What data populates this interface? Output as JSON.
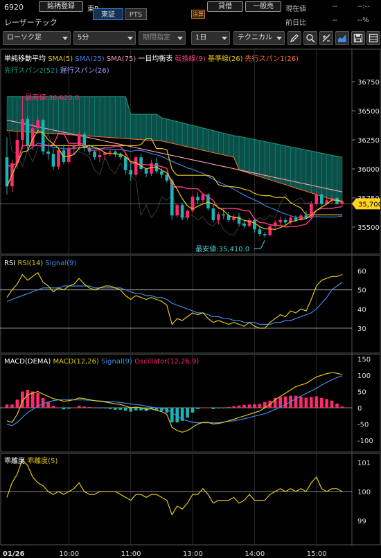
{
  "header": {
    "code": "6920",
    "company": "レーザーテック",
    "search_button": "銘柄登録",
    "market": "東P",
    "exchange_tabs": [
      "東証",
      "PTS"
    ],
    "earnings_badge": "決算",
    "sell_button": "貸借",
    "buy_button": "一般売",
    "current_label": "現在値",
    "current_value": "--",
    "current_value2": "--:--",
    "change_label": "前日比",
    "change_value": "--",
    "change_pct": "--%"
  },
  "toolbar": {
    "chart_type": "ローソク足",
    "interval": "5分",
    "period": "期間指定",
    "range": "1日",
    "technical": "テクニカル"
  },
  "colors": {
    "bg": "#000000",
    "up": "#ff2a6d",
    "down": "#1ab5b5",
    "sma5": "#e6c619",
    "sma25": "#3c7ee8",
    "sma75": "#f39bb2",
    "tenkan": "#ff3b8b",
    "kijun": "#e6c619",
    "span1": "#ff6d2a",
    "span2": "#1a9a86",
    "cloud": "#0e6b60",
    "rsi": "#e6c619",
    "signal": "#3c8ee8",
    "price_tag": "#ffd21f"
  },
  "icons": [
    "pencil-icon",
    "zoom-icon",
    "eraser-icon",
    "area-chart-icon",
    "save-icon",
    "layout-icon"
  ],
  "main": {
    "legend": [
      {
        "label": "単純移動平均",
        "color": "#ffffff"
      },
      {
        "label": "SMA(5)",
        "color": "#e6c619"
      },
      {
        "label": "SMA(25)",
        "color": "#3c7ee8"
      },
      {
        "label": "SMA(75)",
        "color": "#f39bb2"
      },
      {
        "label": "一目均衡表",
        "color": "#ffffff"
      },
      {
        "label": "転換線(9)",
        "color": "#ff3b8b"
      },
      {
        "label": "基準線(26)",
        "color": "#e6c619"
      },
      {
        "label": "先行スパン1(26)",
        "color": "#ff6d2a"
      }
    ],
    "legend2": [
      {
        "label": "先行スパン2(52)",
        "color": "#1a9a86"
      },
      {
        "label": "遅行スパン(26)",
        "color": "#9aa4ff"
      }
    ],
    "high_label": "最高値:36,620.0",
    "low_label": "最安値:35,410.0",
    "price_tag": "35,700",
    "y_ticks": [
      "36750",
      "36500",
      "36250",
      "36000",
      "35750",
      "35500"
    ],
    "y_values": [
      36750,
      36500,
      36250,
      36000,
      35750,
      35500
    ]
  },
  "rsi": {
    "title": "RSI",
    "legend": [
      {
        "label": "RSI(14)",
        "color": "#e6c619"
      },
      {
        "label": "Signal(9)",
        "color": "#3c8ee8"
      }
    ],
    "y_ticks": [
      "60",
      "50",
      "40",
      "30"
    ],
    "y_values": [
      60,
      50,
      40,
      30
    ]
  },
  "macd": {
    "title": "MACD(DEMA)",
    "legend": [
      {
        "label": "MACD(12,26)",
        "color": "#e6c619"
      },
      {
        "label": "Signal(9)",
        "color": "#3c8ee8"
      },
      {
        "label": "Oscillator(12,26,9)",
        "color": "#ff2a6d"
      }
    ],
    "y_ticks": [
      "150",
      "100",
      "50",
      "0",
      "-50",
      "-100"
    ],
    "y_values": [
      150,
      100,
      50,
      0,
      -50,
      -100
    ]
  },
  "dev": {
    "title": "乖離度",
    "legend": [
      {
        "label": "乖離度(5)",
        "color": "#e6c619"
      }
    ],
    "y_ticks": [
      "101",
      "100",
      "99"
    ],
    "y_values": [
      101,
      100,
      99
    ]
  },
  "x_axis": {
    "labels": [
      "01/26",
      "10:00",
      "11:00",
      "13:00",
      "14:00",
      "15:00"
    ],
    "positions": [
      0,
      12,
      24,
      36,
      48,
      60
    ]
  },
  "chart_data": {
    "type": "candlestick",
    "interval": "5min",
    "x_labels": [
      "01/26",
      "10:00",
      "11:00",
      "13:00",
      "14:00",
      "15:00"
    ],
    "ohlc": [
      [
        36100,
        36270,
        35780,
        35850
      ],
      [
        35850,
        36080,
        35800,
        36050
      ],
      [
        36050,
        36320,
        36000,
        36250
      ],
      [
        36250,
        36620,
        36170,
        36430
      ],
      [
        36430,
        36450,
        36170,
        36200
      ],
      [
        36200,
        36400,
        36160,
        36350
      ],
      [
        36350,
        36450,
        36300,
        36420
      ],
      [
        36420,
        36430,
        36120,
        36150
      ],
      [
        36150,
        36230,
        36080,
        36130
      ],
      [
        36130,
        36170,
        35990,
        36020
      ],
      [
        36020,
        36180,
        36000,
        36160
      ],
      [
        36160,
        36210,
        36040,
        36060
      ],
      [
        36060,
        36200,
        36040,
        36180
      ],
      [
        36180,
        36220,
        36130,
        36200
      ],
      [
        36200,
        36330,
        36160,
        36300
      ],
      [
        36300,
        36320,
        36150,
        36180
      ],
      [
        36180,
        36210,
        36120,
        36150
      ],
      [
        36150,
        36160,
        36080,
        36100
      ],
      [
        36100,
        36180,
        36060,
        36120
      ],
      [
        36120,
        36150,
        36080,
        36140
      ],
      [
        36140,
        36170,
        36110,
        36150
      ],
      [
        36150,
        36160,
        36100,
        36130
      ],
      [
        36130,
        36140,
        36080,
        36100
      ],
      [
        36100,
        36130,
        35950,
        35990
      ],
      [
        35990,
        36050,
        35900,
        35950
      ],
      [
        35950,
        36110,
        35930,
        36100
      ],
      [
        36100,
        36130,
        35980,
        36000
      ],
      [
        36000,
        36010,
        35930,
        35960
      ],
      [
        35960,
        36080,
        35940,
        36050
      ],
      [
        36050,
        36100,
        35960,
        35980
      ],
      [
        35980,
        36010,
        35920,
        35950
      ],
      [
        35950,
        35960,
        35880,
        35900
      ],
      [
        35900,
        35920,
        35560,
        35600
      ],
      [
        35600,
        35700,
        35580,
        35690
      ],
      [
        35690,
        35710,
        35560,
        35580
      ],
      [
        35580,
        35650,
        35560,
        35640
      ],
      [
        35640,
        35780,
        35620,
        35760
      ],
      [
        35760,
        35800,
        35700,
        35730
      ],
      [
        35730,
        35790,
        35700,
        35780
      ],
      [
        35780,
        35790,
        35640,
        35660
      ],
      [
        35660,
        35690,
        35540,
        35560
      ],
      [
        35560,
        35630,
        35520,
        35610
      ],
      [
        35610,
        35660,
        35570,
        35600
      ],
      [
        35600,
        35630,
        35540,
        35560
      ],
      [
        35560,
        35610,
        35540,
        35590
      ],
      [
        35590,
        35620,
        35510,
        35530
      ],
      [
        35530,
        35560,
        35490,
        35510
      ],
      [
        35510,
        35580,
        35500,
        35560
      ],
      [
        35560,
        35570,
        35450,
        35480
      ],
      [
        35480,
        35510,
        35420,
        35440
      ],
      [
        35440,
        35460,
        35410,
        35430
      ],
      [
        35430,
        35520,
        35420,
        35510
      ],
      [
        35510,
        35560,
        35490,
        35540
      ],
      [
        35540,
        35590,
        35520,
        35560
      ],
      [
        35560,
        35580,
        35520,
        35540
      ],
      [
        35540,
        35600,
        35520,
        35580
      ],
      [
        35580,
        35600,
        35540,
        35560
      ],
      [
        35560,
        35620,
        35550,
        35600
      ],
      [
        35600,
        35640,
        35570,
        35580
      ],
      [
        35580,
        35720,
        35570,
        35700
      ],
      [
        35700,
        35800,
        35680,
        35780
      ],
      [
        35780,
        35790,
        35680,
        35700
      ],
      [
        35700,
        35750,
        35690,
        35730
      ],
      [
        35730,
        35760,
        35700,
        35750
      ],
      [
        35750,
        35760,
        35690,
        35700
      ],
      [
        35700,
        35740,
        35680,
        35720
      ]
    ],
    "rsi": [
      46,
      50,
      53,
      58,
      55,
      57,
      59,
      54,
      52,
      49,
      51,
      50,
      52,
      53,
      56,
      53,
      51,
      50,
      51,
      52,
      52,
      51,
      50,
      47,
      45,
      47,
      46,
      45,
      46,
      45,
      44,
      42,
      32,
      35,
      34,
      36,
      38,
      37,
      38,
      35,
      33,
      34,
      33,
      32,
      33,
      32,
      31,
      33,
      31,
      30,
      30,
      33,
      35,
      37,
      36,
      39,
      38,
      40,
      39,
      45,
      52,
      55,
      56,
      57,
      57,
      58
    ],
    "rsi_signal": [
      44,
      45,
      46,
      47,
      48,
      49,
      50,
      51,
      51,
      51,
      51,
      52,
      52,
      52,
      52,
      52,
      52,
      51,
      51,
      51,
      51,
      51,
      51,
      50,
      49,
      48,
      48,
      47,
      47,
      46,
      46,
      45,
      43,
      42,
      41,
      40,
      39,
      38,
      38,
      37,
      36,
      36,
      35,
      35,
      34,
      34,
      33,
      33,
      33,
      32,
      32,
      32,
      33,
      33,
      34,
      34,
      35,
      36,
      37,
      38,
      40,
      43,
      46,
      50,
      52,
      54
    ],
    "macd": [
      -40,
      -45,
      -20,
      20,
      40,
      45,
      50,
      42,
      35,
      28,
      25,
      20,
      22,
      25,
      30,
      28,
      25,
      22,
      20,
      18,
      15,
      12,
      10,
      5,
      0,
      2,
      0,
      -5,
      -3,
      -8,
      -12,
      -20,
      -60,
      -70,
      -75,
      -70,
      -60,
      -50,
      -45,
      -45,
      -50,
      -48,
      -45,
      -40,
      -35,
      -30,
      -25,
      -20,
      -15,
      -10,
      0,
      10,
      25,
      35,
      45,
      55,
      65,
      70,
      75,
      85,
      95,
      100,
      105,
      108,
      106,
      102
    ],
    "macd_signal": [
      -50,
      -55,
      -45,
      -30,
      -15,
      -5,
      5,
      12,
      18,
      22,
      24,
      25,
      25,
      24,
      24,
      24,
      23,
      22,
      21,
      20,
      19,
      18,
      16,
      14,
      12,
      10,
      8,
      5,
      2,
      0,
      -2,
      -5,
      -15,
      -25,
      -35,
      -40,
      -45,
      -46,
      -46,
      -46,
      -46,
      -46,
      -44,
      -42,
      -40,
      -37,
      -34,
      -30,
      -26,
      -22,
      -18,
      -12,
      -5,
      2,
      10,
      18,
      28,
      36,
      44,
      52,
      60,
      70,
      78,
      86,
      93,
      98
    ],
    "dev": [
      99.8,
      100.3,
      100.6,
      101.1,
      100.9,
      100.5,
      100.3,
      100.2,
      100.0,
      99.9,
      100.0,
      99.9,
      100.0,
      100.1,
      100.3,
      100.0,
      99.9,
      99.9,
      100.0,
      100.0,
      100.0,
      100.0,
      99.9,
      99.8,
      99.7,
      99.9,
      99.9,
      99.8,
      99.9,
      99.9,
      99.8,
      99.7,
      99.2,
      99.5,
      99.4,
      99.6,
      99.9,
      99.9,
      100.1,
      99.9,
      99.6,
      99.7,
      99.7,
      99.7,
      99.8,
      99.6,
      99.7,
      99.9,
      99.7,
      99.7,
      99.7,
      99.9,
      100.0,
      100.1,
      100.0,
      100.1,
      100.0,
      100.1,
      100.0,
      100.3,
      100.5,
      100.1,
      100.0,
      100.1,
      100.1,
      100.0
    ]
  }
}
